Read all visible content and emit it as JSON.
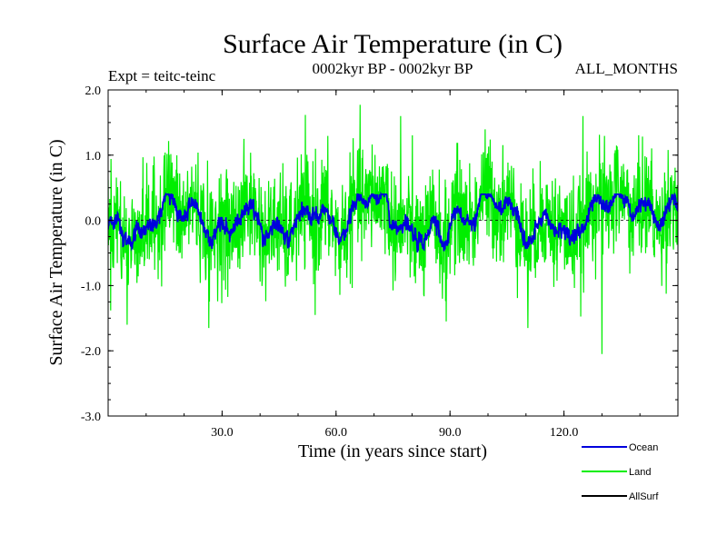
{
  "chart_data": {
    "type": "line",
    "title": "Surface Air Temperature (in C)",
    "subtitle_left": "Expt = teitc-teinc",
    "subtitle_center": "0002kyr BP - 0002kyr BP",
    "subtitle_right": "ALL_MONTHS",
    "xlabel": "Time (in years since start)",
    "ylabel": "Surface Air Temperature (in C)",
    "xlim": [
      0,
      150
    ],
    "ylim": [
      -3.0,
      2.0
    ],
    "xticks": [
      30,
      60,
      90,
      120
    ],
    "xtick_labels": [
      "30.0",
      "60.0",
      "90.0",
      "120.0"
    ],
    "yticks": [
      2.0,
      1.0,
      0.0,
      -1.0,
      -2.0,
      -3.0
    ],
    "ytick_labels": [
      "2.0",
      "1.0",
      "0.0",
      "-1.0",
      "-2.0",
      "-3.0"
    ],
    "series": [
      {
        "name": "Land",
        "color": "#00ee00",
        "amplitude_std": 0.42,
        "notable_points": [
          {
            "x": 5.0,
            "y": -1.6
          },
          {
            "x": 26.5,
            "y": -1.65
          },
          {
            "x": 54.5,
            "y": -1.45
          },
          {
            "x": 77.0,
            "y": 1.6
          },
          {
            "x": 89.0,
            "y": -1.55
          },
          {
            "x": 110.5,
            "y": -1.65
          },
          {
            "x": 125.0,
            "y": 1.6
          },
          {
            "x": 130.0,
            "y": -2.05
          }
        ]
      },
      {
        "name": "Ocean",
        "color": "#0000dd",
        "amplitude_std": 0.18,
        "range": [
          -0.6,
          0.4
        ]
      },
      {
        "name": "AllSurf",
        "color": "#000000",
        "values_note": "constant 0.0 reference line",
        "y": 0.0
      }
    ],
    "legend": [
      {
        "label": "Ocean",
        "color": "#0000dd"
      },
      {
        "label": "Land",
        "color": "#00ee00"
      },
      {
        "label": "AllSurf",
        "color": "#000000"
      }
    ]
  }
}
